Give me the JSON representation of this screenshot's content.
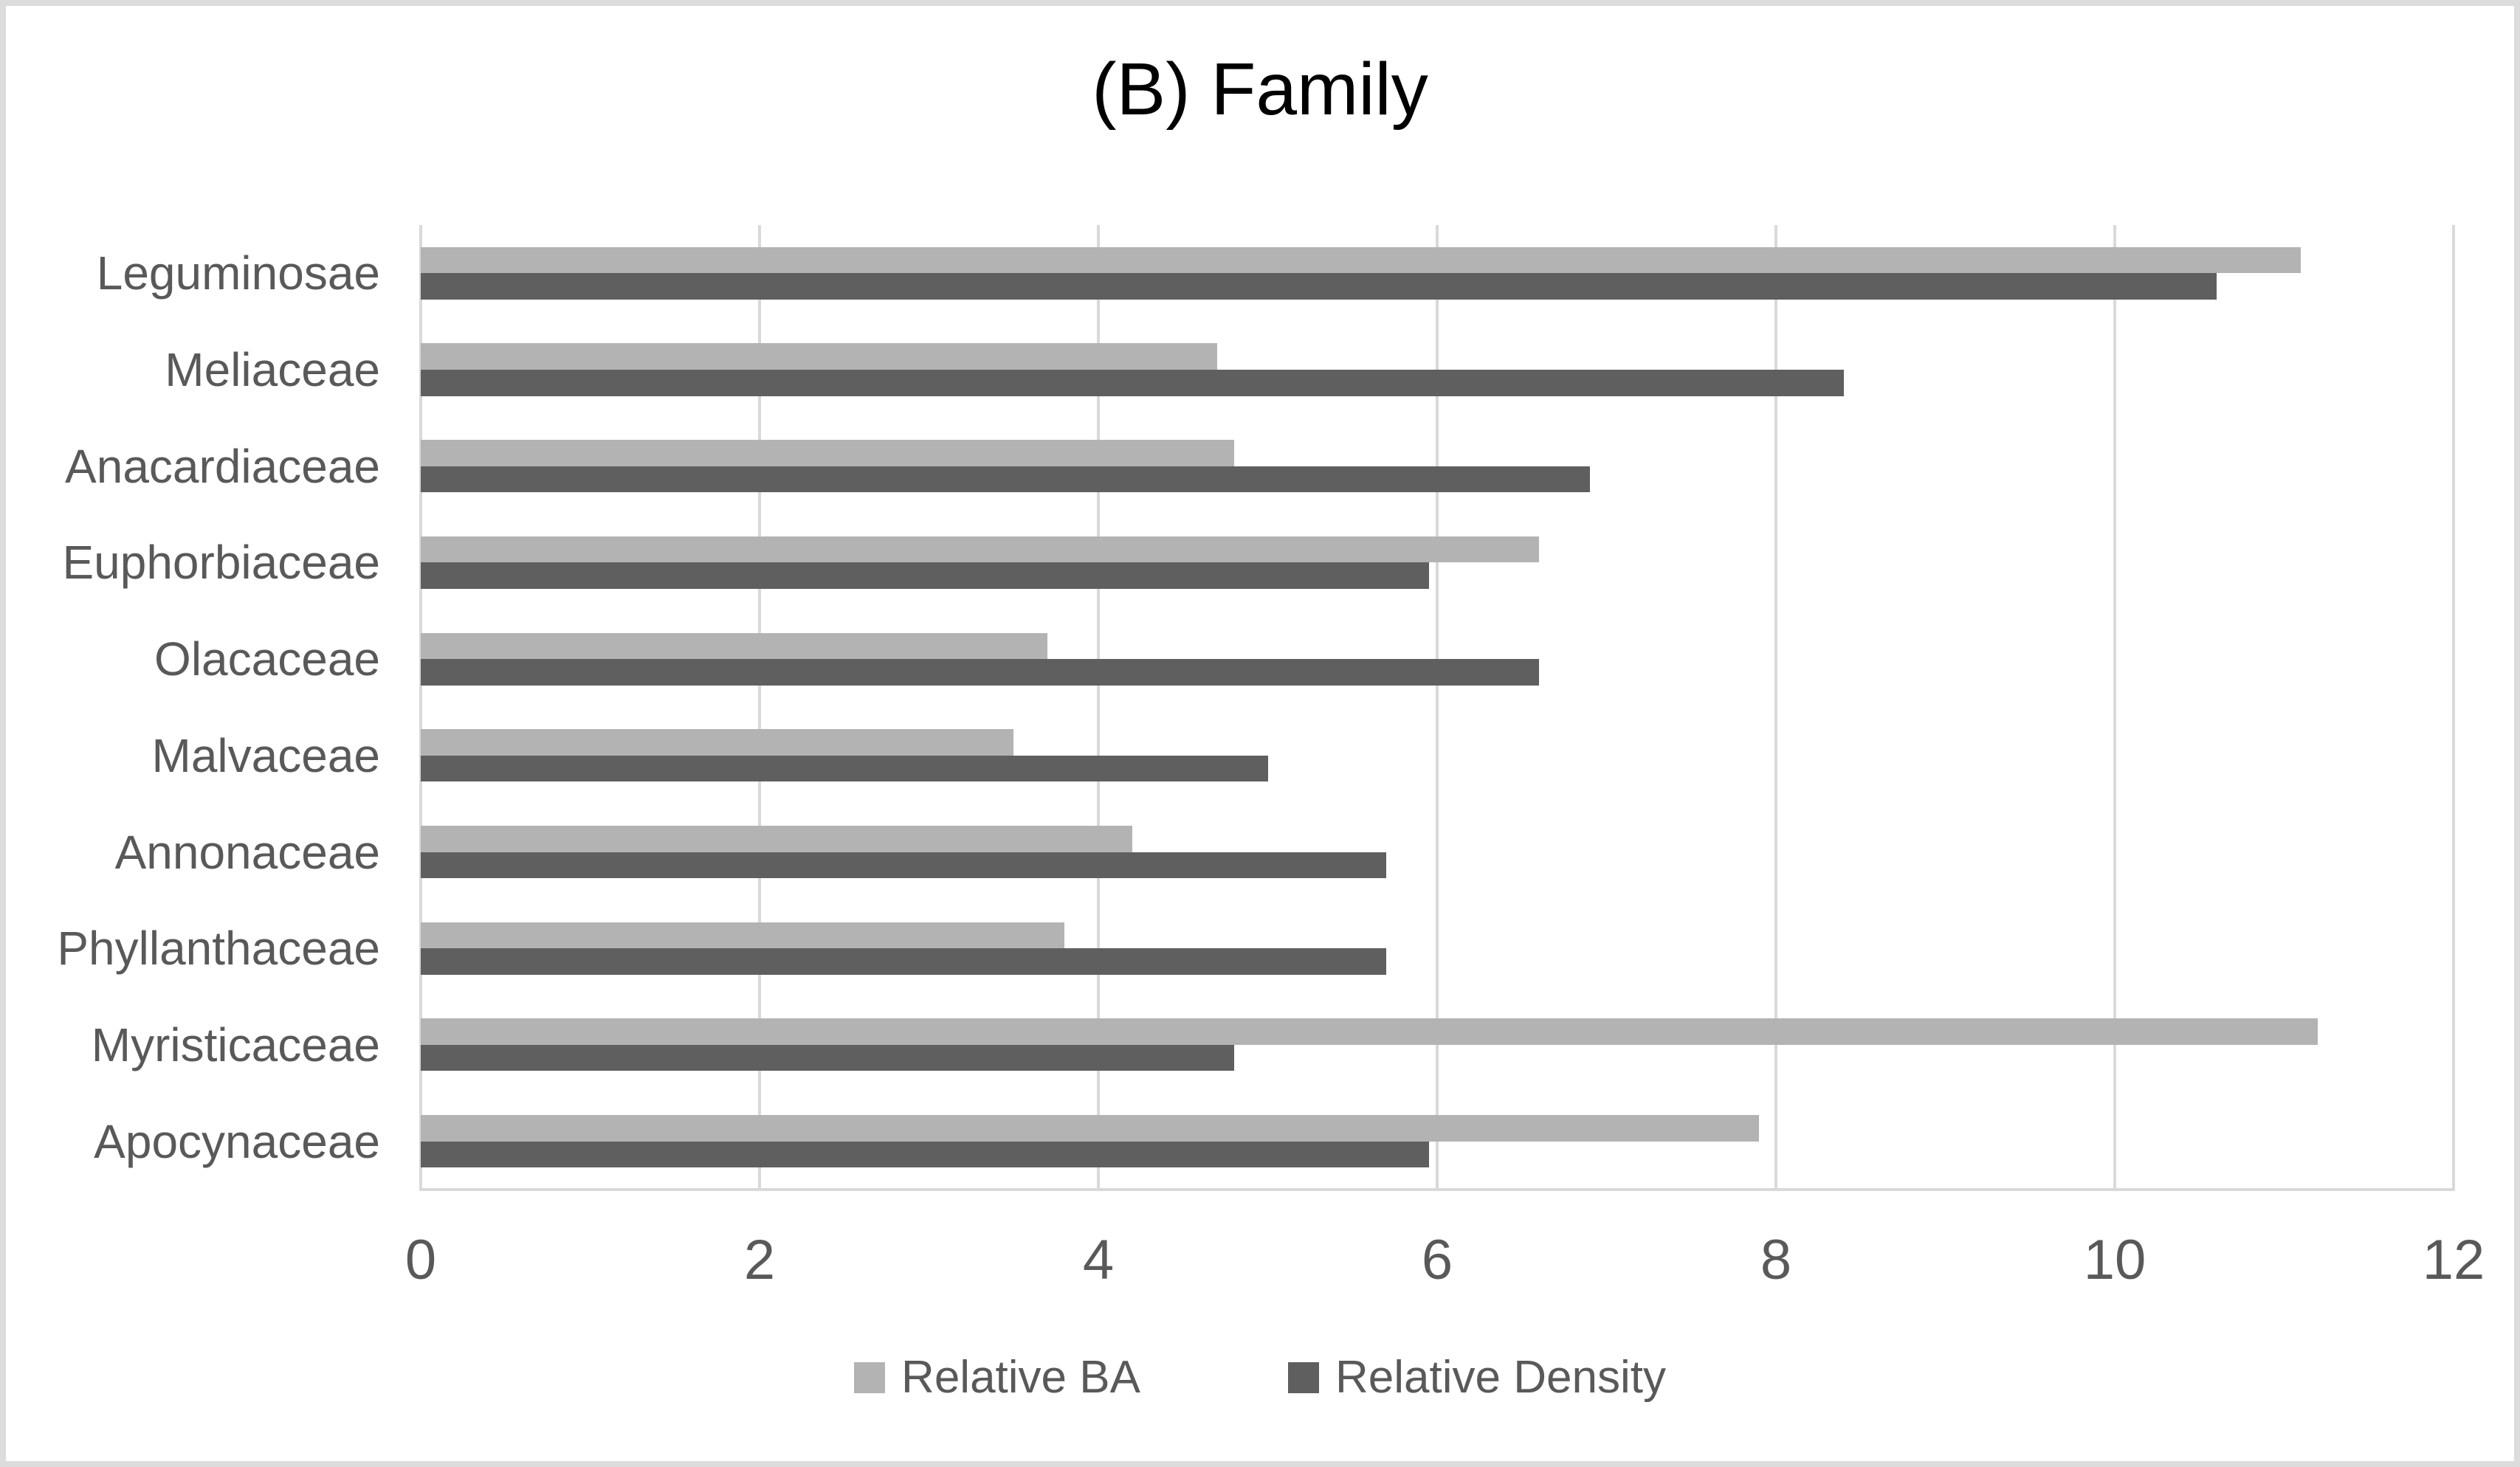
{
  "title": "(B) Family",
  "chart_data": {
    "type": "bar",
    "orientation": "horizontal",
    "title": "(B) Family",
    "categories": [
      "Leguminosae",
      "Meliaceae",
      "Anacardiaceae",
      "Euphorbiaceae",
      "Olacaceae",
      "Malvaceae",
      "Annonaceae",
      "Phyllanthaceae",
      "Myristicaceae",
      "Apocynaceae"
    ],
    "series": [
      {
        "name": "Relative BA",
        "color": "#b3b3b3",
        "values": [
          11.1,
          4.7,
          4.8,
          6.6,
          3.7,
          3.5,
          4.2,
          3.8,
          11.2,
          7.9
        ]
      },
      {
        "name": "Relative Density",
        "color": "#5f5f5f",
        "values": [
          10.6,
          8.4,
          6.9,
          5.95,
          6.6,
          5.0,
          5.7,
          5.7,
          4.8,
          5.95
        ]
      }
    ],
    "xlabel": "",
    "ylabel": "",
    "xlim": [
      0,
      12
    ],
    "xticks": [
      0,
      2,
      4,
      6,
      8,
      10,
      12
    ],
    "grid": true,
    "legend_position": "bottom",
    "colors": {
      "gridline": "#d9d9d9",
      "axis_text": "#595959",
      "title_text": "#000000",
      "background": "#ffffff",
      "frame_border": "#dcdcdc"
    }
  },
  "legend": {
    "items": [
      {
        "label": "Relative BA",
        "color": "#b3b3b3"
      },
      {
        "label": "Relative Density",
        "color": "#5f5f5f"
      }
    ]
  }
}
